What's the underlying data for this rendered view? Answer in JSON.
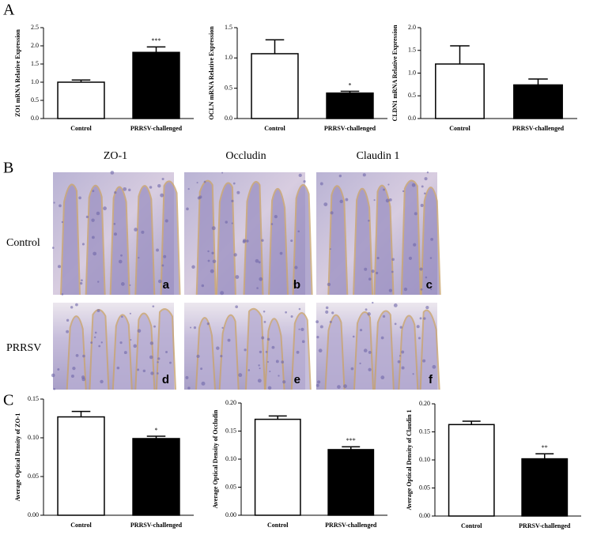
{
  "chart_data": [
    {
      "type": "bar",
      "y_label": "ZO1 mRNA Relative Expression",
      "categories": [
        "Control",
        "PRRSV-challenged"
      ],
      "values": [
        1.0,
        1.82
      ],
      "errors": [
        0.06,
        0.15
      ],
      "colors": [
        "#ffffff",
        "#000000"
      ],
      "significance": [
        null,
        "***"
      ],
      "ylim": [
        0,
        2.5
      ],
      "yticks": [
        {
          "value": 0,
          "label": "0.0"
        },
        0.5,
        {
          "value": 1,
          "label": "1.0"
        },
        1.5,
        {
          "value": 2,
          "label": "2.0"
        },
        2.5
      ]
    },
    {
      "type": "bar",
      "y_label": "OCLN mRNA Relative Expression",
      "categories": [
        "Control",
        "PRRSV-challenged"
      ],
      "values": [
        1.07,
        0.42
      ],
      "errors": [
        0.23,
        0.03
      ],
      "colors": [
        "#ffffff",
        "#000000"
      ],
      "significance": [
        null,
        "*"
      ],
      "ylim": [
        0,
        1.5
      ],
      "yticks": [
        {
          "value": 0,
          "label": "0.0"
        },
        0.5,
        {
          "value": 1,
          "label": "1.0"
        },
        1.5
      ]
    },
    {
      "type": "bar",
      "y_label": "CLDN1 mRNA Relative Expression",
      "categories": [
        "Control",
        "PRRSV-challenged"
      ],
      "values": [
        1.2,
        0.74
      ],
      "errors": [
        0.4,
        0.13
      ],
      "colors": [
        "#ffffff",
        "#000000"
      ],
      "ylim": [
        0,
        2
      ],
      "yticks": [
        {
          "value": 0,
          "label": "0.0"
        },
        0.5,
        {
          "value": 1,
          "label": "1.0"
        },
        1.5,
        {
          "value": 2,
          "label": "2.0"
        }
      ]
    },
    {
      "type": "bar",
      "y_label": "Average Optical Density of ZO-1",
      "categories": [
        "Control",
        "PRRSV-challenged"
      ],
      "values": [
        0.127,
        0.099
      ],
      "errors": [
        0.007,
        0.003
      ],
      "colors": [
        "#ffffff",
        "#000000"
      ],
      "significance": [
        null,
        "*"
      ],
      "ylim": [
        0,
        0.15
      ],
      "yticks": [
        {
          "value": 0,
          "label": "0.00"
        },
        0.05,
        {
          "value": 0.1,
          "label": "0.10"
        },
        0.15
      ]
    },
    {
      "type": "bar",
      "y_label": "Average Optical Density of Occludin",
      "categories": [
        "Control",
        "PRRSV-challenged"
      ],
      "values": [
        0.171,
        0.117
      ],
      "errors": [
        0.006,
        0.005
      ],
      "colors": [
        "#ffffff",
        "#000000"
      ],
      "significance": [
        null,
        "***"
      ],
      "ylim": [
        0,
        0.2
      ],
      "yticks": [
        {
          "value": 0,
          "label": "0.00"
        },
        0.05,
        {
          "value": 0.1,
          "label": "0.10"
        },
        0.15,
        {
          "value": 0.2,
          "label": "0.20"
        }
      ]
    },
    {
      "type": "bar",
      "y_label": "Average Optical Density of Claudin 1",
      "categories": [
        "Control",
        "PRRSV-challenged"
      ],
      "values": [
        0.163,
        0.102
      ],
      "errors": [
        0.006,
        0.009
      ],
      "colors": [
        "#ffffff",
        "#000000"
      ],
      "significance": [
        null,
        "**"
      ],
      "ylim": [
        0,
        0.2
      ],
      "yticks": [
        {
          "value": 0,
          "label": "0.00"
        },
        0.05,
        {
          "value": 0.1,
          "label": "0.10"
        },
        0.15,
        {
          "value": 0.2,
          "label": "0.20"
        }
      ]
    }
  ],
  "panel_labels": [
    "A",
    "B",
    "C"
  ],
  "micrographs": {
    "columns": [
      "ZO-1",
      "Occludin",
      "Claudin 1"
    ],
    "rows": [
      "Control",
      "PRRSV"
    ],
    "letters": [
      "a",
      "b",
      "c",
      "d",
      "e",
      "f"
    ]
  }
}
